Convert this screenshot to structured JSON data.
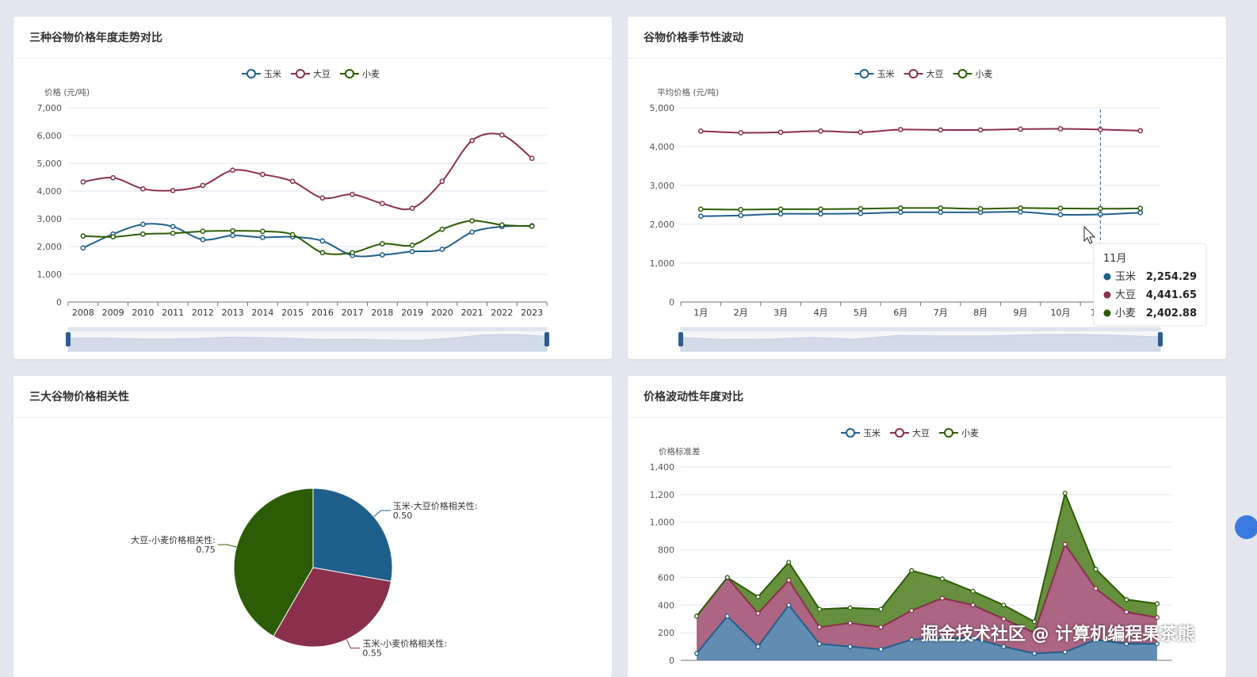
{
  "colors": {
    "corn": "#1f5f8b",
    "soy": "#8a2f4c",
    "wheat": "#2d5c06"
  },
  "legend": [
    "玉米",
    "大豆",
    "小麦"
  ],
  "charts": {
    "annual": {
      "title": "三种谷物价格年度走势对比",
      "ylabel": "价格 (元/吨)",
      "chart_data": {
        "type": "line",
        "x": [
          "2008",
          "2009",
          "2010",
          "2011",
          "2012",
          "2013",
          "2014",
          "2015",
          "2016",
          "2017",
          "2018",
          "2019",
          "2020",
          "2021",
          "2022",
          "2023"
        ],
        "ylim": [
          0,
          7000
        ],
        "yticks": [
          "0",
          "1,000",
          "2,000",
          "3,000",
          "4,000",
          "5,000",
          "6,000",
          "7,000"
        ],
        "series": [
          {
            "name": "玉米",
            "values": [
              1950,
              2450,
              2800,
              2720,
              2250,
              2400,
              2330,
              2350,
              2200,
              1680,
              1700,
              1820,
              1900,
              2520,
              2720,
              2750
            ]
          },
          {
            "name": "大豆",
            "values": [
              4330,
              4480,
              4080,
              4020,
              4200,
              4750,
              4600,
              4350,
              3750,
              3880,
              3550,
              3380,
              4350,
              5820,
              6020,
              5180
            ]
          },
          {
            "name": "小麦",
            "values": [
              2380,
              2350,
              2450,
              2480,
              2550,
              2570,
              2550,
              2430,
              1780,
              1780,
              2100,
              2050,
              2620,
              2930,
              2780,
              2730
            ]
          }
        ]
      }
    },
    "seasonal": {
      "title": "谷物价格季节性波动",
      "ylabel": "平均价格 (元/吨)",
      "chart_data": {
        "type": "line",
        "x": [
          "1月",
          "2月",
          "3月",
          "4月",
          "5月",
          "6月",
          "7月",
          "8月",
          "9月",
          "10月",
          "11月",
          "12月"
        ],
        "ylim": [
          0,
          5000
        ],
        "yticks": [
          "0",
          "1,000",
          "2,000",
          "3,000",
          "4,000",
          "5,000"
        ],
        "series": [
          {
            "name": "玉米",
            "values": [
              2210,
              2230,
              2270,
              2270,
              2280,
              2310,
              2310,
              2310,
              2320,
              2250,
              2254.29,
              2300
            ]
          },
          {
            "name": "大豆",
            "values": [
              4400,
              4360,
              4370,
              4400,
              4370,
              4440,
              4430,
              4430,
              4450,
              4460,
              4441.65,
              4410
            ]
          },
          {
            "name": "小麦",
            "values": [
              2390,
              2380,
              2390,
              2390,
              2400,
              2420,
              2420,
              2400,
              2420,
              2410,
              2402.88,
              2410
            ]
          }
        ]
      },
      "tooltip": {
        "title": "11月",
        "rows": [
          {
            "name": "玉米",
            "value": "2,254.29"
          },
          {
            "name": "大豆",
            "value": "4,441.65"
          },
          {
            "name": "小麦",
            "value": "2,402.88"
          }
        ]
      }
    },
    "correlation": {
      "title": "三大谷物价格相关性",
      "chart_data": {
        "type": "pie",
        "slices": [
          {
            "label": "玉米-大豆价格相关性:",
            "value": 0.5,
            "value_text": "0.50"
          },
          {
            "label": "玉米-小麦价格相关性:",
            "value": 0.55,
            "value_text": "0.55"
          },
          {
            "label": "大豆-小麦价格相关性:",
            "value": 0.75,
            "value_text": "0.75"
          }
        ]
      }
    },
    "volatility": {
      "title": "价格波动性年度对比",
      "ylabel": "价格标准差",
      "chart_data": {
        "type": "area",
        "stacked": true,
        "ylim": [
          0,
          1400
        ],
        "yticks": [
          "0",
          "200",
          "400",
          "600",
          "800",
          "1,000",
          "1,200",
          "1,400"
        ],
        "series": [
          {
            "name": "玉米",
            "values": [
              50,
              320,
              100,
              400,
              120,
              100,
              80,
              150,
              160,
              160,
              100,
              50,
              60,
              150,
              120,
              120
            ]
          },
          {
            "name": "大豆",
            "values": [
              270,
              280,
              240,
              180,
              120,
              170,
              160,
              210,
              290,
              240,
              200,
              150,
              780,
              370,
              230,
              190
            ]
          },
          {
            "name": "小麦",
            "values": [
              0,
              0,
              120,
              130,
              130,
              110,
              130,
              290,
              140,
              100,
              100,
              80,
              370,
              140,
              90,
              100
            ]
          }
        ]
      }
    }
  },
  "watermark": "掘金技术社区 @ 计算机编程果茶熊"
}
